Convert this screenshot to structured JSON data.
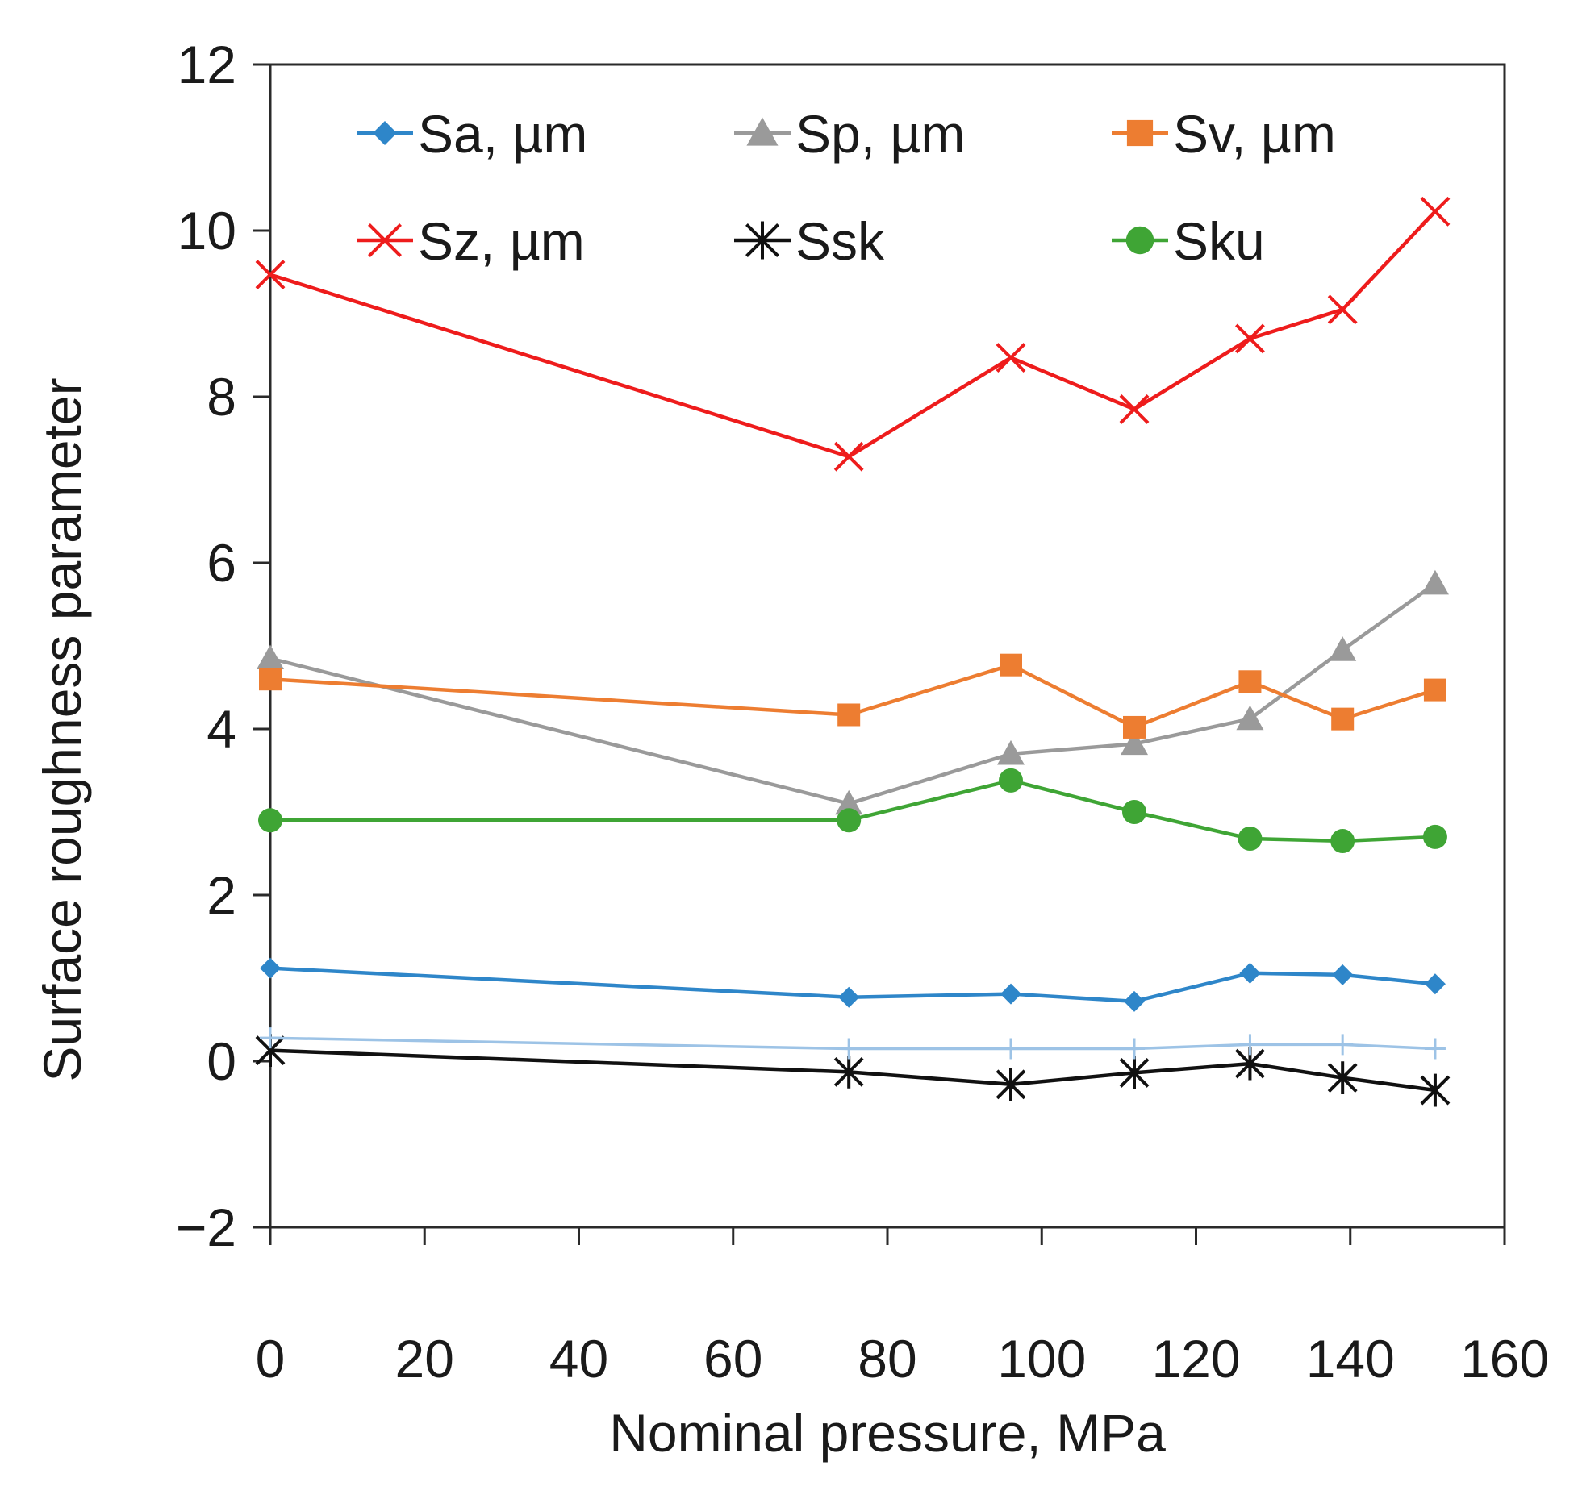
{
  "chart_data": {
    "type": "line",
    "title": "",
    "xlabel": "Nominal pressure, MPa",
    "ylabel": "Surface roughness  parameter",
    "xlim": [
      0,
      160
    ],
    "ylim": [
      -2,
      12
    ],
    "xticks": [
      0,
      20,
      40,
      60,
      80,
      100,
      120,
      140,
      160
    ],
    "yticks": [
      -2,
      0,
      2,
      4,
      6,
      8,
      10,
      12
    ],
    "ytick_labels": [
      "−2",
      "0",
      "2",
      "4",
      "6",
      "8",
      "10",
      "12"
    ],
    "legend_position": "top",
    "x": [
      0,
      75,
      96,
      112,
      127,
      139,
      151
    ],
    "series": [
      {
        "name": "Sa, µm",
        "color": "#2e86c9",
        "marker": "diamond",
        "values": [
          1.12,
          0.77,
          0.81,
          0.72,
          1.06,
          1.04,
          0.93
        ]
      },
      {
        "name": "Sp, µm",
        "color": "#9a9a9a",
        "marker": "triangle",
        "values": [
          4.85,
          3.1,
          3.7,
          3.82,
          4.12,
          4.95,
          5.75
        ]
      },
      {
        "name": "Sv, µm",
        "color": "#ed7d31",
        "marker": "square",
        "values": [
          4.6,
          4.17,
          4.77,
          4.02,
          4.57,
          4.12,
          4.47
        ]
      },
      {
        "name": "Sz, µm",
        "color": "#ee1c1c",
        "marker": "x",
        "values": [
          9.47,
          7.28,
          8.47,
          7.85,
          8.7,
          9.05,
          10.23
        ]
      },
      {
        "name": "Ssk",
        "color": "#111111",
        "marker": "star",
        "values": [
          0.13,
          -0.13,
          -0.28,
          -0.14,
          -0.03,
          -0.2,
          -0.35
        ]
      },
      {
        "name": "Sku",
        "color": "#3fa535",
        "marker": "circle",
        "values": [
          2.9,
          2.9,
          3.38,
          3.0,
          2.68,
          2.65,
          2.7
        ]
      },
      {
        "name": "",
        "color": "#9dc3e6",
        "marker": "plus",
        "values": [
          0.28,
          0.15,
          0.15,
          0.15,
          0.2,
          0.2,
          0.15
        ],
        "in_legend": false
      }
    ]
  }
}
